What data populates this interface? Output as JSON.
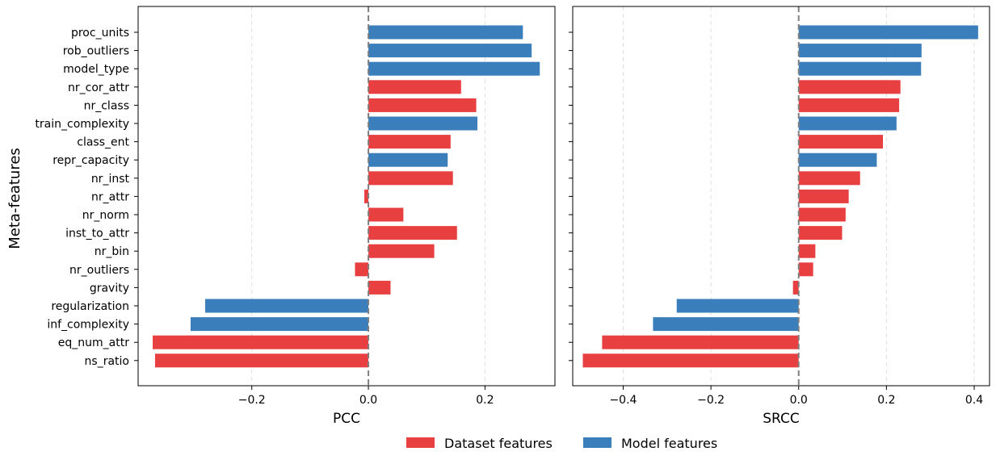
{
  "figure": {
    "ylabel": "Meta-features",
    "legend": {
      "placement": "bottom-center",
      "entries": [
        {
          "label": "Dataset features",
          "color": "#e84040"
        },
        {
          "label": "Model features",
          "color": "#3a7ebb"
        }
      ]
    }
  },
  "chart_data": [
    {
      "type": "bar",
      "orientation": "horizontal",
      "xlabel": "PCC",
      "ylabel": "Meta-features",
      "xlim": [
        -0.395,
        0.32
      ],
      "xticks": [
        -0.2,
        0.0,
        0.2
      ],
      "xtick_labels": [
        "−0.2",
        "0.0",
        "0.2"
      ],
      "grid": "x, dashed",
      "zero_line": true,
      "categories": [
        "proc_units",
        "rob_outliers",
        "model_type",
        "nr_cor_attr",
        "nr_class",
        "train_complexity",
        "class_ent",
        "repr_capacity",
        "nr_inst",
        "nr_attr",
        "nr_norm",
        "inst_to_attr",
        "nr_bin",
        "nr_outliers",
        "gravity",
        "regularization",
        "inf_complexity",
        "eq_num_attr",
        "ns_ratio"
      ],
      "groups": [
        "model",
        "model",
        "model",
        "dataset",
        "dataset",
        "model",
        "dataset",
        "model",
        "dataset",
        "dataset",
        "dataset",
        "dataset",
        "dataset",
        "dataset",
        "dataset",
        "model",
        "model",
        "dataset",
        "dataset"
      ],
      "values": [
        0.265,
        0.28,
        0.294,
        0.159,
        0.185,
        0.187,
        0.141,
        0.136,
        0.145,
        -0.007,
        0.06,
        0.152,
        0.113,
        -0.023,
        0.038,
        -0.28,
        -0.305,
        -0.37,
        -0.366
      ]
    },
    {
      "type": "bar",
      "orientation": "horizontal",
      "xlabel": "SRCC",
      "xlim": [
        -0.515,
        0.435
      ],
      "xticks": [
        -0.4,
        -0.2,
        0.0,
        0.2,
        0.4
      ],
      "xtick_labels": [
        "−0.4",
        "−0.2",
        "0.0",
        "0.2",
        "0.4"
      ],
      "grid": "x, dashed",
      "zero_line": true,
      "categories": [
        "proc_units",
        "rob_outliers",
        "model_type",
        "nr_cor_attr",
        "nr_class",
        "train_complexity",
        "class_ent",
        "repr_capacity",
        "nr_inst",
        "nr_attr",
        "nr_norm",
        "inst_to_attr",
        "nr_bin",
        "nr_outliers",
        "gravity",
        "regularization",
        "inf_complexity",
        "eq_num_attr",
        "ns_ratio"
      ],
      "groups": [
        "model",
        "model",
        "model",
        "dataset",
        "dataset",
        "model",
        "dataset",
        "model",
        "dataset",
        "dataset",
        "dataset",
        "dataset",
        "dataset",
        "dataset",
        "dataset",
        "model",
        "model",
        "dataset",
        "dataset"
      ],
      "values": [
        0.409,
        0.28,
        0.279,
        0.232,
        0.229,
        0.223,
        0.192,
        0.178,
        0.14,
        0.114,
        0.107,
        0.099,
        0.038,
        0.033,
        -0.013,
        -0.278,
        -0.332,
        -0.448,
        -0.492
      ]
    }
  ]
}
